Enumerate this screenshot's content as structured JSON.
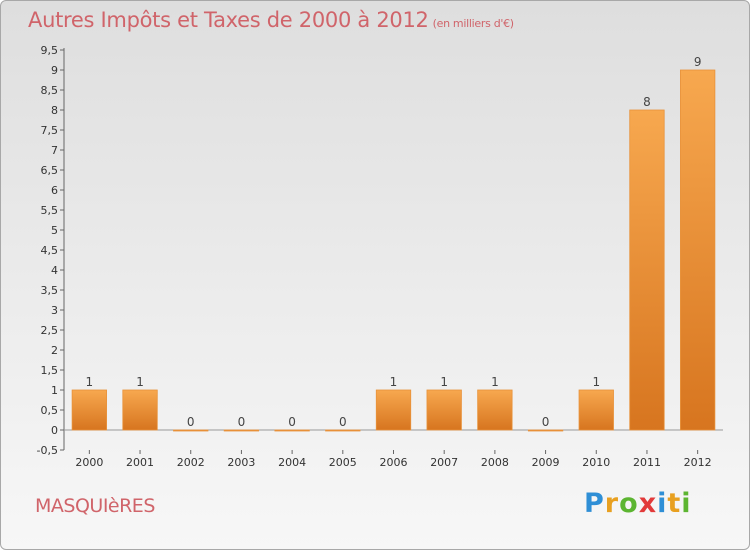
{
  "title": "Autres Impôts et Taxes de 2000 à 2012",
  "title_unit": "(en milliers d'€)",
  "place": "MASQUIèRES",
  "logo": {
    "letters": [
      "P",
      "r",
      "o",
      "x",
      "i",
      "t",
      "i"
    ],
    "colors": [
      "#2f8fd6",
      "#e8a020",
      "#5cb531",
      "#e23a3a",
      "#2f8fd6",
      "#e8a020",
      "#5cb531"
    ]
  },
  "colors": {
    "bar_light": "#f7a84f",
    "bar_dark": "#d7751f",
    "title": "#d0646a"
  },
  "chart_data": {
    "type": "bar",
    "title": "Autres Impôts et Taxes de 2000 à 2012",
    "categories": [
      "2000",
      "2001",
      "2002",
      "2003",
      "2004",
      "2005",
      "2006",
      "2007",
      "2008",
      "2009",
      "2010",
      "2011",
      "2012"
    ],
    "values": [
      1,
      1,
      0,
      0,
      0,
      0,
      1,
      1,
      1,
      0,
      1,
      8,
      9
    ],
    "data_labels": [
      "1",
      "1",
      "0",
      "0",
      "0",
      "0",
      "1",
      "1",
      "1",
      "0",
      "1",
      "8",
      "9"
    ],
    "ylim": [
      -0.5,
      9.5
    ],
    "yticks": [
      -0.5,
      0,
      0.5,
      1,
      1.5,
      2,
      2.5,
      3,
      3.5,
      4,
      4.5,
      5,
      5.5,
      6,
      6.5,
      7,
      7.5,
      8,
      8.5,
      9,
      9.5
    ],
    "ytick_labels": [
      "-0,5",
      "0",
      "0,5",
      "1",
      "1,5",
      "2",
      "2,5",
      "3",
      "3,5",
      "4",
      "4,5",
      "5",
      "5,5",
      "6",
      "6,5",
      "7",
      "7,5",
      "8",
      "8,5",
      "9",
      "9,5"
    ],
    "grid": false,
    "legend": "none"
  }
}
